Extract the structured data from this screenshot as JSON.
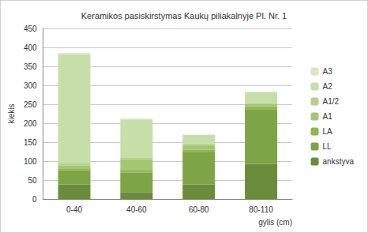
{
  "chart_data": {
    "type": "bar",
    "title": "Keramikos pasiskirstymas Kaukų piliakalnyje Pl. Nr. 1",
    "x_label": "gylis (cm)",
    "y_label": "kiekis",
    "categories": [
      "0-40",
      "40-60",
      "60-80",
      "80-110"
    ],
    "series": [
      {
        "name": "ankstyva",
        "color": "#6b8c3a",
        "values": [
          38,
          18,
          38,
          92
        ]
      },
      {
        "name": "LL",
        "color": "#7da545",
        "values": [
          38,
          52,
          85,
          145
        ]
      },
      {
        "name": "LA",
        "color": "#8fb653",
        "values": [
          3,
          5,
          7,
          8
        ]
      },
      {
        "name": "A1",
        "color": "#a3c673",
        "values": [
          10,
          30,
          12,
          5
        ]
      },
      {
        "name": "A1/2",
        "color": "#b4d18b",
        "values": [
          5,
          5,
          5,
          3
        ]
      },
      {
        "name": "A2",
        "color": "#c6dfa9",
        "values": [
          288,
          100,
          22,
          28
        ]
      },
      {
        "name": "A3",
        "color": "#d6e9c3",
        "values": [
          3,
          2,
          1,
          2
        ]
      }
    ],
    "ylim": [
      0,
      450
    ],
    "yticks": [
      0,
      50,
      100,
      150,
      200,
      250,
      300,
      350,
      400,
      450
    ],
    "stacked": true,
    "grid": true,
    "legend": "right"
  }
}
